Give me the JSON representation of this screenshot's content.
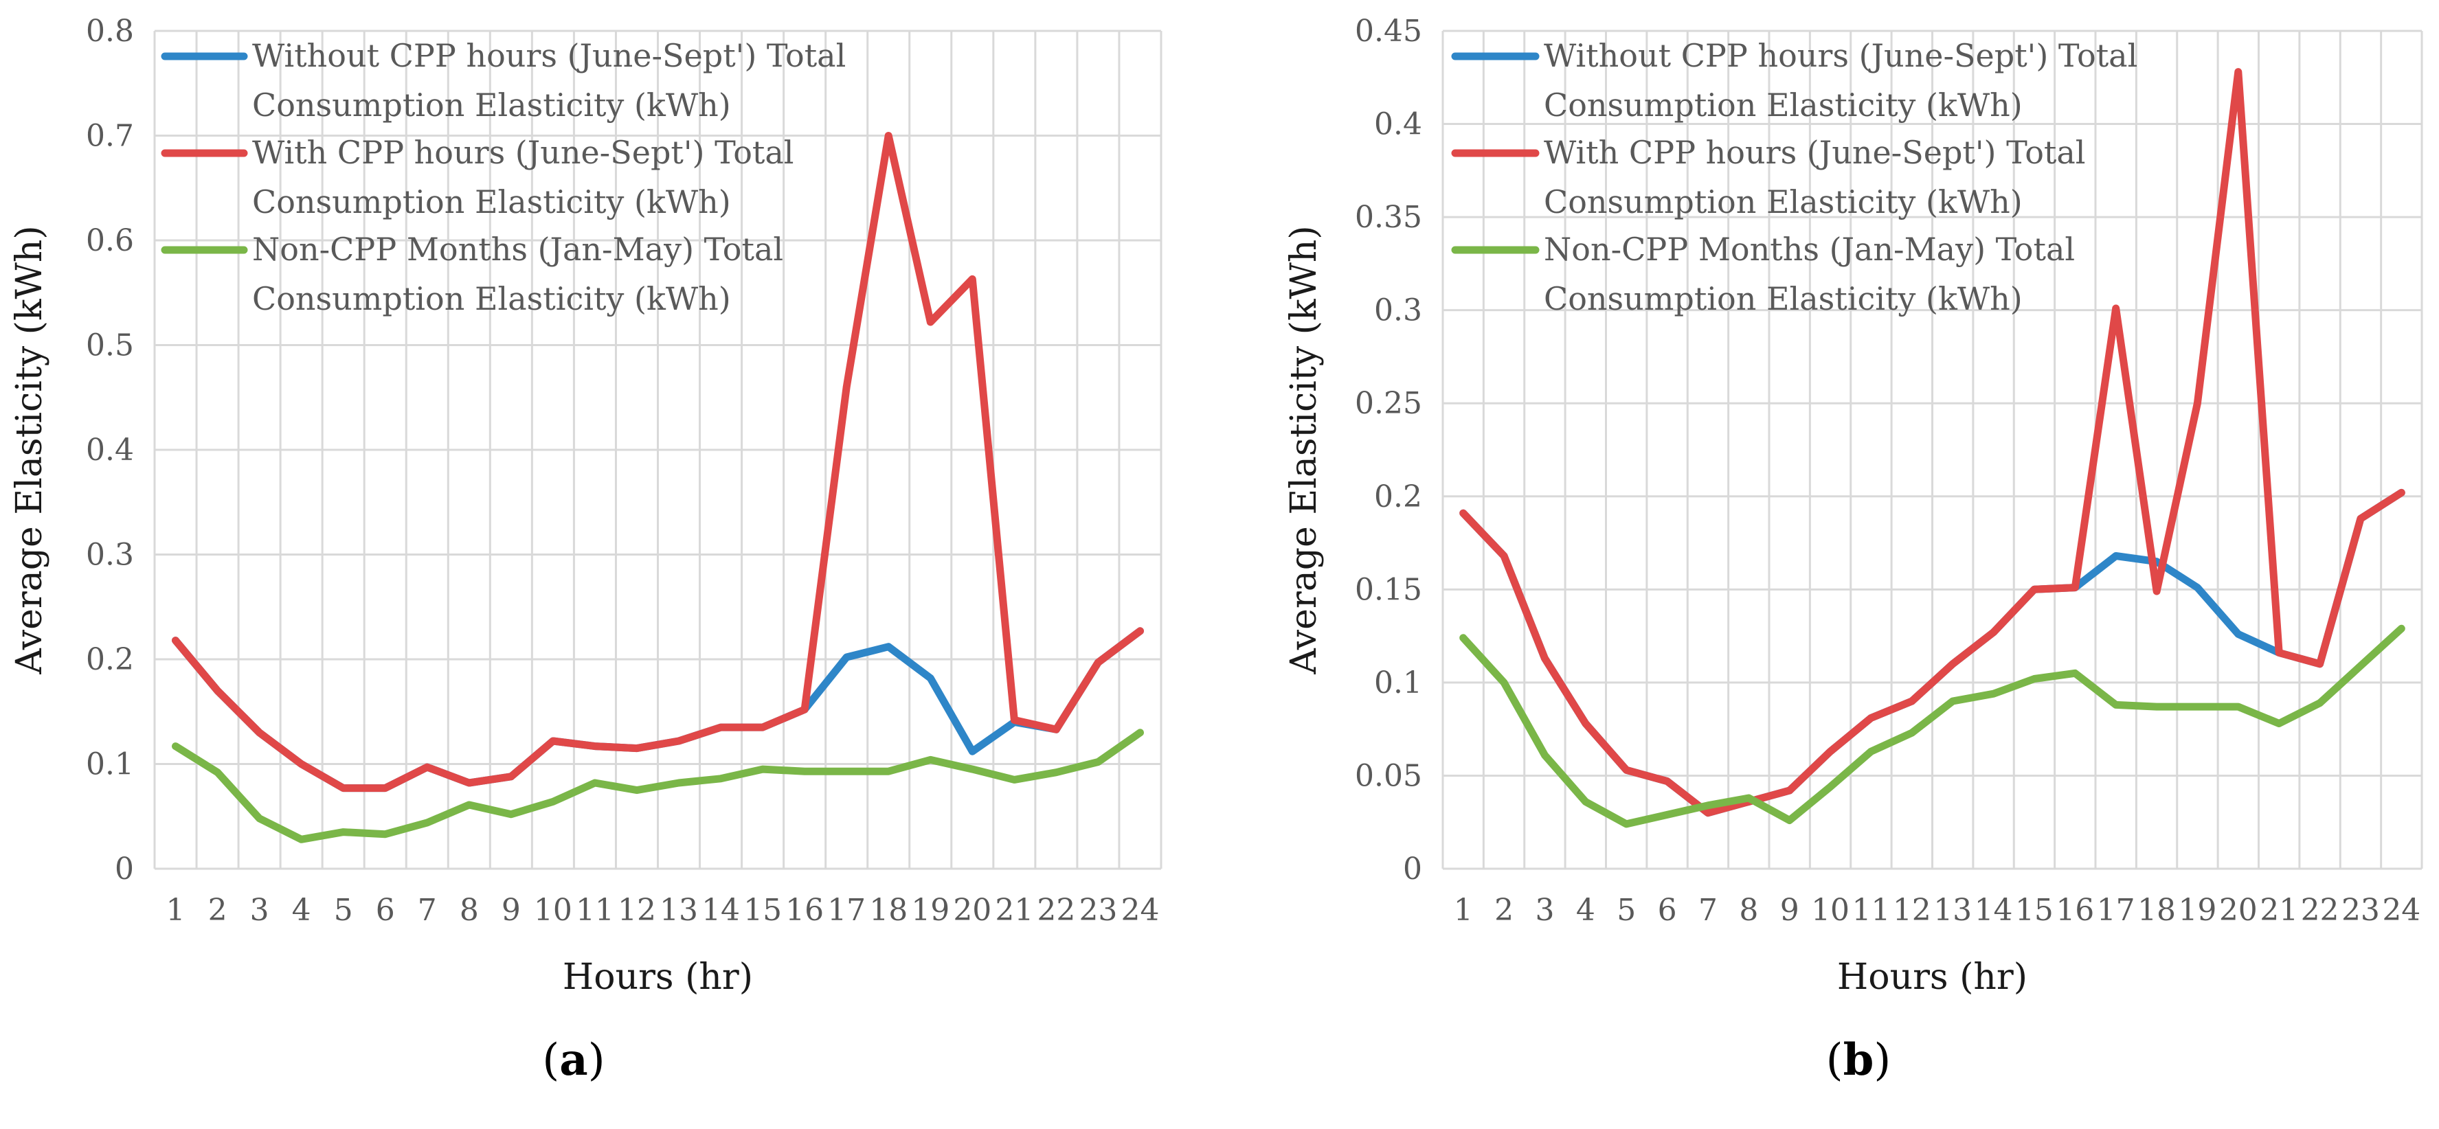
{
  "chart_data": [
    {
      "type": "line",
      "panel_label": "a",
      "xlabel": "Hours (hr)",
      "ylabel": "Average Elasticity (kWh)",
      "ylim": [
        0,
        0.8
      ],
      "yticks": [
        "0",
        "0.1",
        "0.2",
        "0.3",
        "0.4",
        "0.5",
        "0.6",
        "0.7",
        "0.8"
      ],
      "ytick_values": [
        0,
        0.1,
        0.2,
        0.3,
        0.4,
        0.5,
        0.6,
        0.7,
        0.8
      ],
      "categories": [
        "1",
        "2",
        "3",
        "4",
        "5",
        "6",
        "7",
        "8",
        "9",
        "10",
        "11",
        "12",
        "13",
        "14",
        "15",
        "16",
        "17",
        "18",
        "19",
        "20",
        "21",
        "22",
        "23",
        "24"
      ],
      "legend_position": "top-left",
      "series": [
        {
          "name": "Without CPP hours (June-Sept') Total Consumption Elasticity (kWh)",
          "legend_lines": [
            "Without CPP hours (June-Sept') Total",
            "Consumption Elasticity (kWh)"
          ],
          "color": "#2E86C8",
          "values": [
            0.218,
            0.17,
            0.13,
            0.1,
            0.077,
            0.077,
            0.097,
            0.082,
            0.088,
            0.122,
            0.117,
            0.115,
            0.122,
            0.135,
            0.135,
            0.152,
            0.202,
            0.212,
            0.182,
            0.112,
            0.14,
            0.133,
            0.197,
            0.227
          ]
        },
        {
          "name": "With CPP hours (June-Sept') Total Consumption Elasticity (kWh)",
          "legend_lines": [
            "With CPP hours (June-Sept') Total",
            "Consumption Elasticity (kWh)"
          ],
          "color": "#E04848",
          "values": [
            0.218,
            0.17,
            0.13,
            0.1,
            0.077,
            0.077,
            0.097,
            0.082,
            0.088,
            0.122,
            0.117,
            0.115,
            0.122,
            0.135,
            0.135,
            0.152,
            0.46,
            0.7,
            0.522,
            0.563,
            0.142,
            0.133,
            0.197,
            0.227
          ]
        },
        {
          "name": "Non-CPP Months (Jan-May) Total Consumption Elasticity (kWh)",
          "legend_lines": [
            "Non-CPP Months (Jan-May) Total",
            "Consumption Elasticity (kWh)"
          ],
          "color": "#7AB648",
          "values": [
            0.117,
            0.092,
            0.048,
            0.028,
            0.035,
            0.033,
            0.044,
            0.061,
            0.052,
            0.064,
            0.082,
            0.075,
            0.082,
            0.086,
            0.095,
            0.093,
            0.093,
            0.093,
            0.104,
            0.095,
            0.085,
            0.092,
            0.102,
            0.13
          ]
        }
      ]
    },
    {
      "type": "line",
      "panel_label": "b",
      "xlabel": "Hours (hr)",
      "ylabel": "Average Elasticity (kWh)",
      "ylim": [
        0,
        0.45
      ],
      "yticks": [
        "0",
        "0.05",
        "0.1",
        "0.15",
        "0.2",
        "0.25",
        "0.3",
        "0.35",
        "0.4",
        "0.45"
      ],
      "ytick_values": [
        0,
        0.05,
        0.1,
        0.15,
        0.2,
        0.25,
        0.3,
        0.35,
        0.4,
        0.45
      ],
      "categories": [
        "1",
        "2",
        "3",
        "4",
        "5",
        "6",
        "7",
        "8",
        "9",
        "10",
        "11",
        "12",
        "13",
        "14",
        "15",
        "16",
        "17",
        "18",
        "19",
        "20",
        "21",
        "22",
        "23",
        "24"
      ],
      "legend_position": "top-left",
      "series": [
        {
          "name": "Without CPP hours (June-Sept') Total Consumption Elasticity (kWh)",
          "legend_lines": [
            "Without CPP hours (June-Sept') Total",
            "Consumption Elasticity (kWh)"
          ],
          "color": "#2E86C8",
          "values": [
            0.191,
            0.168,
            0.113,
            0.078,
            0.053,
            0.047,
            0.03,
            0.036,
            0.042,
            0.063,
            0.081,
            0.09,
            0.11,
            0.127,
            0.15,
            0.151,
            0.168,
            0.165,
            0.151,
            0.126,
            0.116,
            0.11,
            0.188,
            0.202
          ]
        },
        {
          "name": "With CPP hours (June-Sept') Total Consumption Elasticity (kWh)",
          "legend_lines": [
            "With CPP hours (June-Sept') Total",
            "Consumption Elasticity (kWh)"
          ],
          "color": "#E04848",
          "values": [
            0.191,
            0.168,
            0.113,
            0.078,
            0.053,
            0.047,
            0.03,
            0.036,
            0.042,
            0.063,
            0.081,
            0.09,
            0.11,
            0.127,
            0.15,
            0.151,
            0.301,
            0.149,
            0.25,
            0.428,
            0.116,
            0.11,
            0.188,
            0.202
          ]
        },
        {
          "name": "Non-CPP Months (Jan-May) Total Consumption Elasticity (kWh)",
          "legend_lines": [
            "Non-CPP Months (Jan-May) Total",
            "Consumption Elasticity (kWh)"
          ],
          "color": "#7AB648",
          "values": [
            0.124,
            0.1,
            0.061,
            0.036,
            0.024,
            0.029,
            0.034,
            0.038,
            0.026,
            0.044,
            0.063,
            0.073,
            0.09,
            0.094,
            0.102,
            0.105,
            0.088,
            0.087,
            0.087,
            0.087,
            0.078,
            0.089,
            0.109,
            0.129
          ]
        }
      ]
    }
  ],
  "captions": [
    {
      "open": "(",
      "label": "a",
      "close": ")"
    },
    {
      "open": "(",
      "label": "b",
      "close": ")"
    }
  ]
}
